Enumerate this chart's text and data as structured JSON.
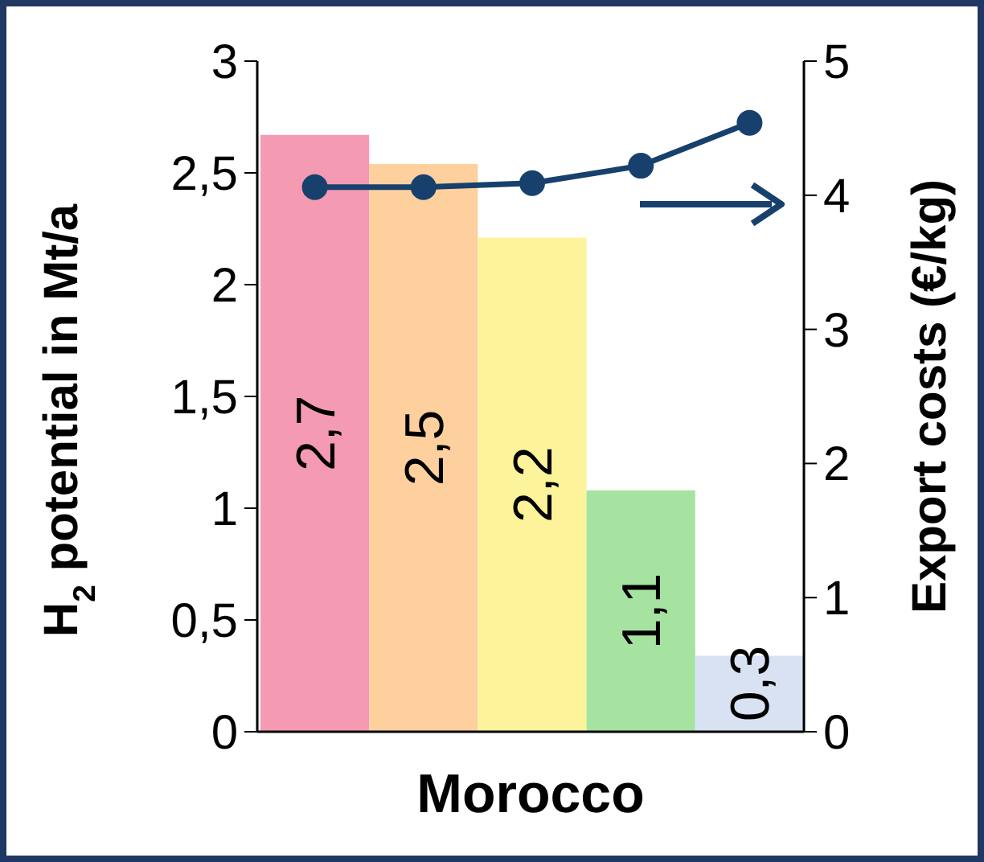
{
  "chart_data": {
    "type": "bar",
    "xlabel": "Morocco",
    "ylabel": "H$_{2}$ potential in Mt/a",
    "y2label": "Export costs (€/kg)",
    "categories": [
      null,
      null,
      null,
      null,
      null
    ],
    "series": [
      {
        "colors": [
          "#f59ab3",
          "#fdd09e",
          "#fdf39a",
          "#a6e3a1",
          "#d9e2f3"
        ],
        "values": [
          2.67,
          2.54,
          2.21,
          1.08,
          0.34
        ],
        "value_labels": [
          "2,7",
          "2,5",
          "2,2",
          "1,1",
          "0,3"
        ]
      },
      {
        "type": "line",
        "axis": "y2",
        "color": "#17406d",
        "values": [
          4.06,
          4.06,
          4.09,
          4.22,
          4.54
        ],
        "marker": "circle",
        "line_style": "solid"
      }
    ],
    "ylim": [
      0,
      3
    ],
    "yticks": [
      0,
      {
        "value": 0.5,
        "label": "0,5"
      },
      1,
      {
        "value": 1.5,
        "label": "1,5"
      },
      2,
      {
        "value": 2.5,
        "label": "2,5"
      },
      3
    ],
    "y2lim": [
      0,
      5
    ],
    "y2ticks": [
      0,
      1,
      2,
      3,
      4,
      5
    ],
    "grid": false
  }
}
